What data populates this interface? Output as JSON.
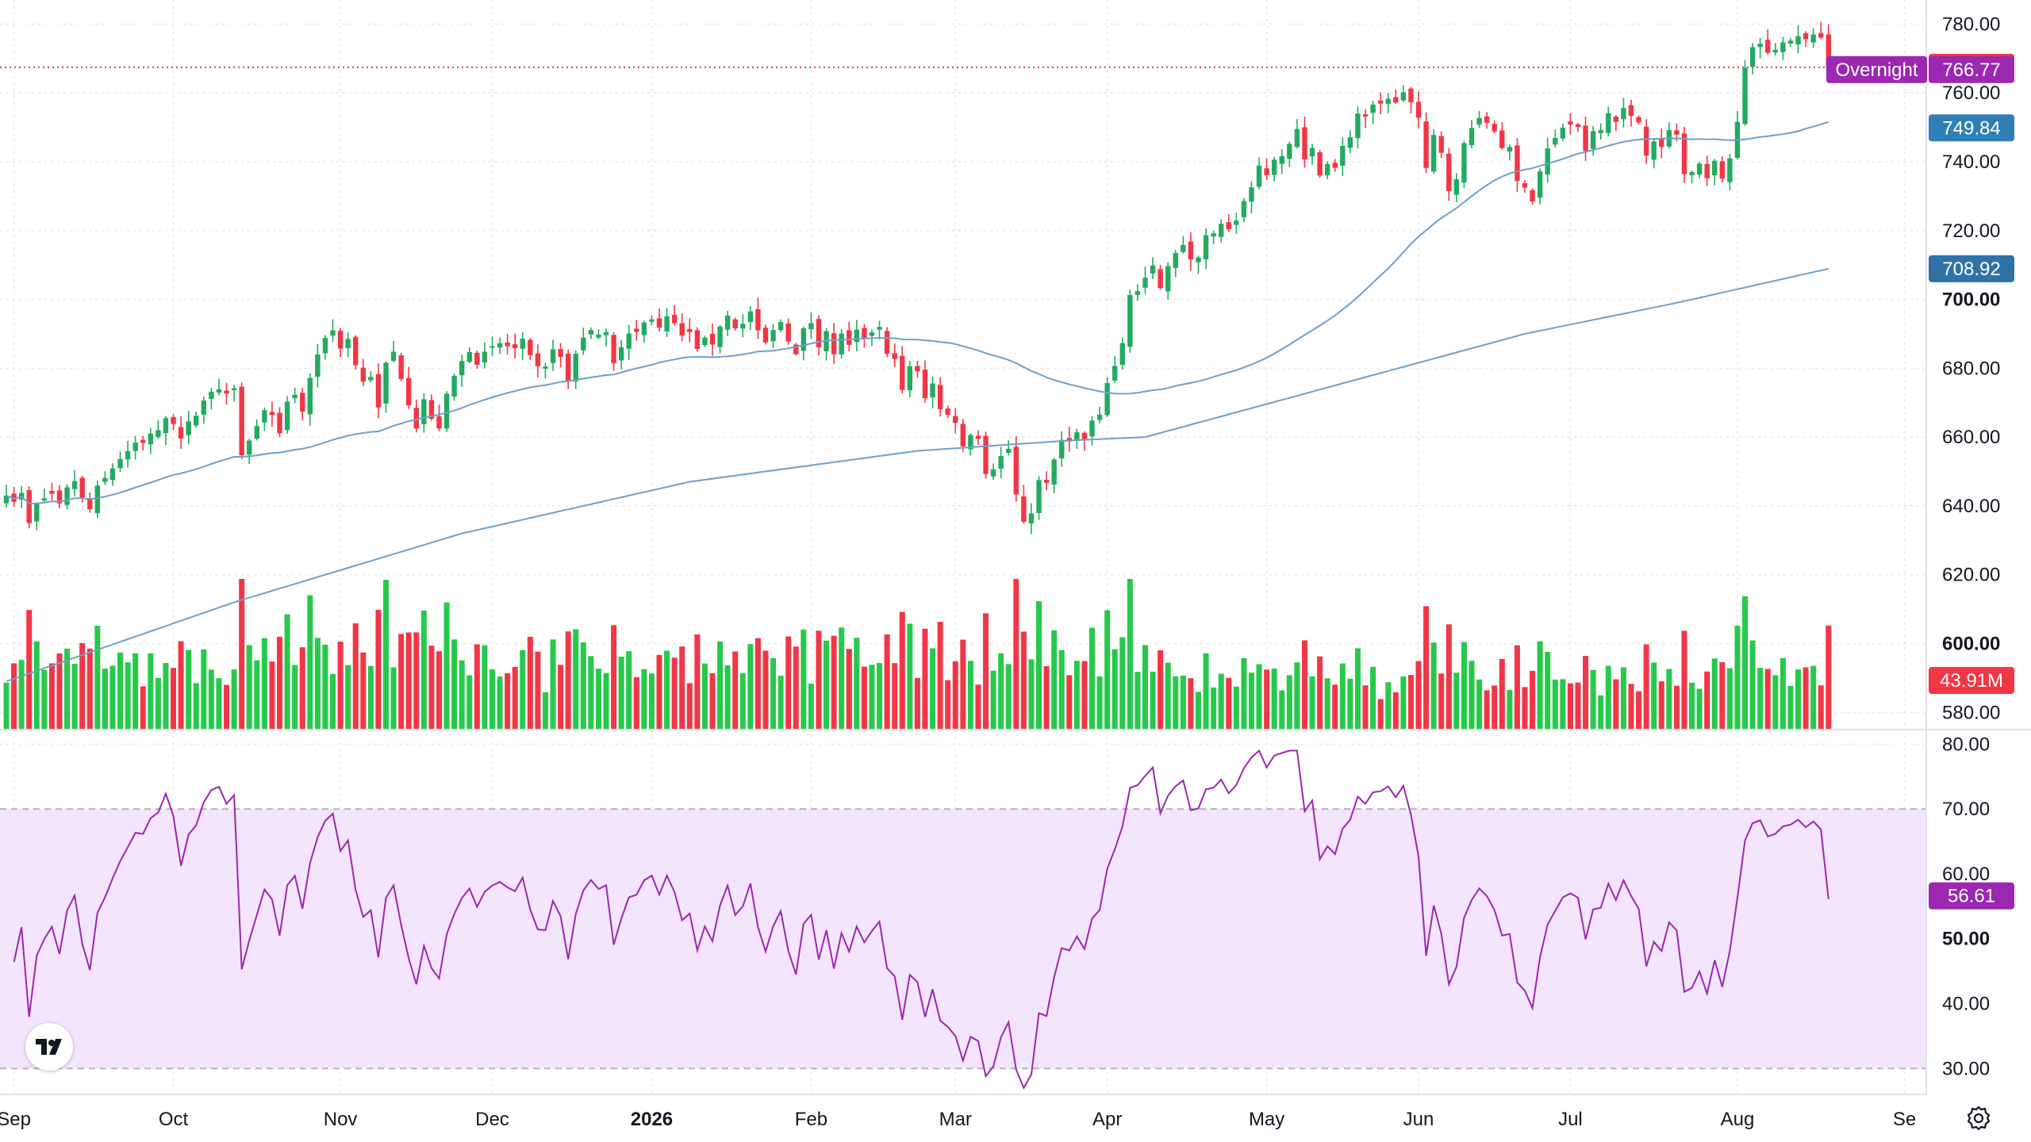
{
  "chart_data": {
    "type": "candlestick",
    "price_axis": {
      "ticks": [
        "580.00",
        "600.00",
        "620.00",
        "640.00",
        "660.00",
        "680.00",
        "700.00",
        "720.00",
        "740.00",
        "760.00",
        "780.00"
      ],
      "bold_ticks": [
        "600.00",
        "700.00"
      ],
      "range": [
        575,
        787
      ]
    },
    "rsi_axis": {
      "ticks": [
        "30.00",
        "40.00",
        "50.00",
        "60.00",
        "70.00",
        "80.00"
      ],
      "bold_ticks": [
        "50.00"
      ],
      "range": [
        26,
        82
      ],
      "band": [
        30,
        70
      ]
    },
    "time_axis": {
      "labels": [
        {
          "text": "Sep",
          "i": 1,
          "bold": false
        },
        {
          "text": "Oct",
          "i": 22,
          "bold": false
        },
        {
          "text": "Nov",
          "i": 44,
          "bold": false
        },
        {
          "text": "Dec",
          "i": 64,
          "bold": false
        },
        {
          "text": "2026",
          "i": 85,
          "bold": true
        },
        {
          "text": "Feb",
          "i": 106,
          "bold": false
        },
        {
          "text": "Mar",
          "i": 125,
          "bold": false
        },
        {
          "text": "Apr",
          "i": 145,
          "bold": false
        },
        {
          "text": "May",
          "i": 166,
          "bold": false
        },
        {
          "text": "Jun",
          "i": 186,
          "bold": false
        },
        {
          "text": "Jul",
          "i": 206,
          "bold": false
        },
        {
          "text": "Aug",
          "i": 228,
          "bold": false
        },
        {
          "text": "Se",
          "i": 250,
          "bold": false
        }
      ]
    },
    "closes": [
      643,
      641.2,
      643.8,
      635,
      640.5,
      642.2,
      643.5,
      640.7,
      645.4,
      647.2,
      642.2,
      639,
      645.9,
      648.1,
      650.9,
      653.6,
      655.9,
      658.4,
      658.3,
      661,
      662,
      665.5,
      663.8,
      659.6,
      664.6,
      666.2,
      670.6,
      673.2,
      673.9,
      672.6,
      674.2,
      654.7,
      659,
      663.2,
      667.8,
      666.4,
      661.1,
      670.3,
      672.3,
      667.4,
      677.2,
      684,
      688.8,
      691,
      685.7,
      688.5,
      680.9,
      676.1,
      677.5,
      668.6,
      681.6,
      684.8,
      676.9,
      669.2,
      662.5,
      671,
      665.3,
      662.5,
      672.6,
      677.8,
      682.1,
      684.7,
      681,
      684.8,
      686.4,
      687.3,
      686.4,
      685.8,
      688.6,
      683.8,
      680.6,
      680.5,
      685.5,
      683.3,
      676.4,
      684.2,
      688.9,
      691.1,
      689.8,
      690.5,
      681.5,
      686.1,
      690.1,
      690.6,
      693.3,
      694.2,
      691.8,
      695.1,
      693.1,
      689.5,
      690.5,
      685.6,
      688.9,
      686.9,
      692.1,
      695.3,
      691.6,
      692.9,
      696.5,
      691,
      687.5,
      691.1,
      693.4,
      687.8,
      684.1,
      691.6,
      693.1,
      686.1,
      690.8,
      684.1,
      690.1,
      686.8,
      691.2,
      688.5,
      690.4,
      692,
      684.2,
      682.7,
      673.7,
      680.6,
      679.1,
      671.3,
      675.6,
      668.1,
      666.5,
      664.1,
      657.3,
      660.6,
      659.5,
      649.3,
      650.6,
      654.5,
      656.6,
      643.3,
      635.4,
      637.8,
      647.5,
      646.7,
      653.5,
      659.2,
      658.7,
      661.4,
      659,
      664.8,
      666.5,
      675.7,
      680.7,
      687.3,
      701.3,
      702.4,
      706.3,
      709.9,
      703.3,
      709.7,
      713.5,
      715.8,
      711.6,
      712.2,
      718.7,
      719.2,
      722,
      720.4,
      722.9,
      728.6,
      732.6,
      738.9,
      736.1,
      740.6,
      741.6,
      745.2,
      749.5,
      740.7,
      744,
      736,
      739.3,
      738.2,
      744.6,
      747.1,
      754,
      753.1,
      756.6,
      756.9,
      758.3,
      757.2,
      760.2,
      757.3,
      752.8,
      738.2,
      747.8,
      742.6,
      731.5,
      734.9,
      745.4,
      749.8,
      752.7,
      751.3,
      748.8,
      744,
      744.3,
      734.4,
      732.5,
      728.4,
      737.2,
      743.9,
      746.9,
      749.9,
      750.8,
      750.1,
      743.1,
      748.9,
      749.2,
      754.1,
      751.6,
      755.6,
      753.3,
      751.4,
      741.8,
      745.9,
      744.3,
      749.2,
      747.9,
      736.4,
      737,
      739.5,
      735.2,
      740.3,
      735.1,
      741,
      751.6,
      767.3,
      773.3,
      774.3,
      771.7,
      772.5,
      774.7,
      775.2,
      776.5,
      775.6,
      777,
      776.1,
      767.45
    ],
    "volume_axis_max": 62,
    "last_price": "767.45",
    "overnight_label": "Overnight",
    "overnight_price": "766.77",
    "ma50_value": "749.84",
    "ma200_value": "708.92",
    "volume_label": "43.91M",
    "rsi_value": "56.61",
    "colors": {
      "up": "#22ab5f",
      "down": "#f23645",
      "up_volume": "#26c94a",
      "down_volume": "#f23645",
      "ma": "#6fa0c8",
      "ma_tag": "#2f7fb5",
      "ma200_tag": "#2f72a8",
      "rsi_line": "#9c27b0",
      "rsi_band": "#f3e5fd",
      "overnight": "#9c27b0",
      "last_price": "#f23645",
      "grid": "#e6e8ee"
    }
  }
}
